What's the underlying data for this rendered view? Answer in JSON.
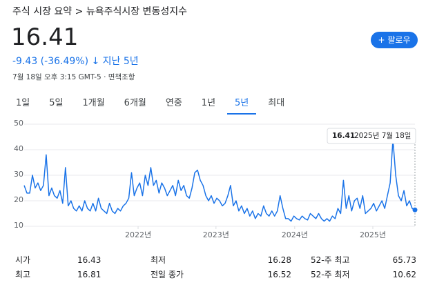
{
  "header": {
    "breadcrumb_1": "주식 시장 요약",
    "breadcrumb_sep": ">",
    "breadcrumb_2": "뉴욕주식시장 변동성지수",
    "price": "16.41",
    "change": "-9.43 (-36.49%)",
    "period": "지난 5년",
    "follow": "팔로우",
    "timestamp": "7월 18일 오후 3:15 GMT-5",
    "disclaimer": "면책조항"
  },
  "tabs": {
    "items": [
      "1일",
      "5일",
      "1개월",
      "6개월",
      "연중",
      "1년",
      "5년",
      "최대"
    ],
    "selected": 6
  },
  "chart_data": {
    "type": "line",
    "color": "#1a73e8",
    "values": [
      26,
      23,
      23,
      30,
      25,
      27,
      24,
      26,
      38,
      22,
      25,
      22,
      21,
      24,
      19,
      33,
      18,
      20,
      17,
      16,
      18,
      16,
      20,
      17,
      16,
      19,
      16,
      21,
      17,
      16,
      15,
      19,
      16,
      15,
      17,
      16,
      18,
      19,
      21,
      31,
      22,
      25,
      27,
      22,
      30,
      26,
      33,
      26,
      28,
      23,
      27,
      25,
      22,
      24,
      26,
      22,
      28,
      24,
      26,
      22,
      21,
      25,
      31,
      32,
      28,
      26,
      22,
      20,
      22,
      19,
      21,
      20,
      18,
      19,
      22,
      26,
      18,
      20,
      16,
      18,
      15,
      17,
      14,
      16,
      13,
      15,
      14,
      18,
      15,
      14,
      16,
      14,
      16,
      22,
      17,
      13,
      13,
      12,
      14,
      13,
      12.5,
      14,
      13,
      12.5,
      15,
      14,
      13,
      15,
      13,
      12,
      13,
      12,
      14,
      13,
      17,
      15,
      28,
      17,
      22,
      16,
      20,
      21,
      17,
      22,
      15,
      16,
      17,
      19,
      16,
      18,
      20,
      17,
      22,
      27,
      44,
      30,
      22,
      20,
      24,
      18,
      20,
      17,
      16.41
    ],
    "xlim": [
      0,
      142
    ],
    "xticks": [
      {
        "value": 41.4,
        "label": "2022년"
      },
      {
        "value": 69.7,
        "label": "2023년"
      },
      {
        "value": 98.3,
        "label": "2024년"
      },
      {
        "value": 126.7,
        "label": "2025년"
      }
    ],
    "ylim": [
      10,
      50
    ],
    "yticks": [
      10,
      20,
      30,
      40,
      50
    ],
    "grid": true,
    "tooltip_date": "2025년 7월 18일"
  },
  "stats": {
    "rows": [
      [
        "시가",
        "16.43",
        "최저",
        "16.28",
        "52-주 최고",
        "65.73"
      ],
      [
        "최고",
        "16.81",
        "전일 종가",
        "16.52",
        "52-주 최저",
        "10.62"
      ]
    ]
  }
}
